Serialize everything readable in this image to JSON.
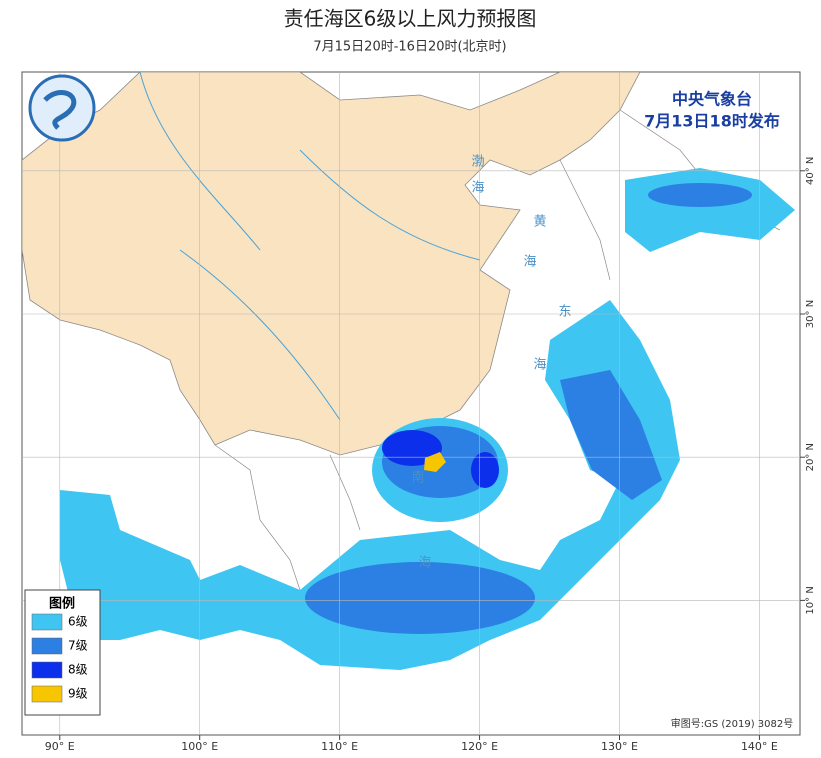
{
  "header": {
    "title": "责任海区6级以上风力预报图",
    "subtitle": "7月15日20时-16日20时(北京时)"
  },
  "agency": {
    "name": "中央气象台",
    "issued": "7月13日18时发布"
  },
  "legend": {
    "title": "图例",
    "items": [
      {
        "label": "6级",
        "color": "#3ec5f2"
      },
      {
        "label": "7级",
        "color": "#2c7fe3"
      },
      {
        "label": "8级",
        "color": "#0b2fea"
      },
      {
        "label": "9级",
        "color": "#f7c600"
      }
    ]
  },
  "map": {
    "xlim": [
      87.3,
      142.9
    ],
    "ylim": [
      0.6,
      46.9
    ],
    "xticks": [
      {
        "value": 90,
        "label": "90° E"
      },
      {
        "value": 100,
        "label": "100° E"
      },
      {
        "value": 110,
        "label": "110° E"
      },
      {
        "value": 120,
        "label": "120° E"
      },
      {
        "value": 130,
        "label": "130° E"
      },
      {
        "value": 140,
        "label": "140° E"
      }
    ],
    "yticks": [
      {
        "value": 10,
        "label": "10° N"
      },
      {
        "value": 20,
        "label": "20° N"
      },
      {
        "value": 30,
        "label": "30° N"
      },
      {
        "value": 40,
        "label": "40° N"
      }
    ],
    "sea_labels": [
      "渤",
      "海",
      "黄",
      "海",
      "东",
      "海",
      "南",
      "海"
    ]
  },
  "approval": "审图号:GS (2019) 3082号"
}
